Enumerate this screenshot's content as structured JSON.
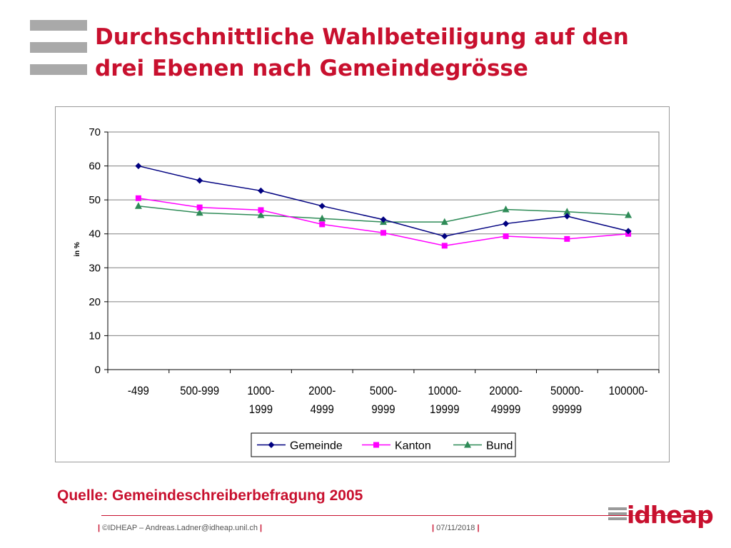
{
  "slide": {
    "title_line1": "Durchschnittliche Wahlbeteiligung auf den",
    "title_line2": "drei Ebenen nach Gemeindegrösse",
    "source": "Quelle: Gemeindeschreiberbefragung 2005",
    "footer_left": "©IDHEAP – Andreas.Ladner@idheap.unil.ch",
    "footer_date": "07/11/2018",
    "logo_text": "idheap",
    "accent_color": "#c8102e"
  },
  "chart_data": {
    "type": "line",
    "categories": [
      [
        "-499"
      ],
      [
        "500-999"
      ],
      [
        "1000-",
        "1999"
      ],
      [
        "2000-",
        "4999"
      ],
      [
        "5000-",
        "9999"
      ],
      [
        "10000-",
        "19999"
      ],
      [
        "20000-",
        "49999"
      ],
      [
        "50000-",
        "99999"
      ],
      [
        "100000-"
      ]
    ],
    "ylabel": "in %",
    "ylim": [
      0,
      70
    ],
    "yticks": [
      0,
      10,
      20,
      30,
      40,
      50,
      60,
      70
    ],
    "grid": true,
    "legend_position": "bottom",
    "series": [
      {
        "name": "Gemeinde",
        "color": "#000080",
        "marker": "diamond",
        "values": [
          60,
          55.7,
          52.7,
          48.2,
          44.2,
          39.3,
          43,
          45.2,
          40.8
        ]
      },
      {
        "name": "Kanton",
        "color": "#ff00ff",
        "marker": "square",
        "values": [
          50.5,
          47.8,
          47,
          42.8,
          40.3,
          36.5,
          39.3,
          38.5,
          40
        ]
      },
      {
        "name": "Bund",
        "color": "#2e8b57",
        "marker": "triangle",
        "values": [
          48.2,
          46.2,
          45.5,
          44.5,
          43.5,
          43.5,
          47.2,
          46.5,
          45.5
        ]
      }
    ]
  }
}
